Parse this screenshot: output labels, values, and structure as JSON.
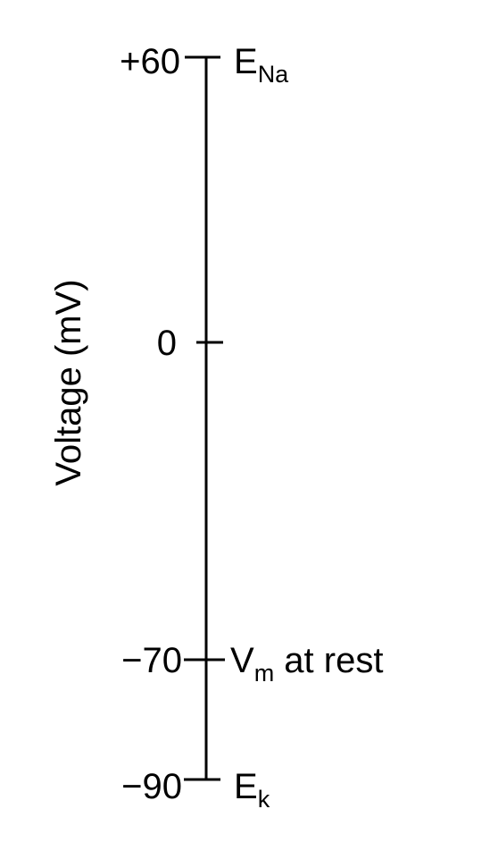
{
  "axis": {
    "title": "Voltage (mV)",
    "line_color": "#000000"
  },
  "ticks": [
    {
      "value": 60,
      "label": "+60"
    },
    {
      "value": 0,
      "label": "0"
    },
    {
      "value": -70,
      "label": "−70"
    },
    {
      "value": -90,
      "label": "−90"
    }
  ],
  "markers": [
    {
      "value": 60,
      "label": "E",
      "subscript": "Na",
      "suffix": ""
    },
    {
      "value": -70,
      "label": "V",
      "subscript": "m",
      "suffix": " at rest"
    },
    {
      "value": -90,
      "label": "E",
      "subscript": "k",
      "suffix": ""
    }
  ]
}
